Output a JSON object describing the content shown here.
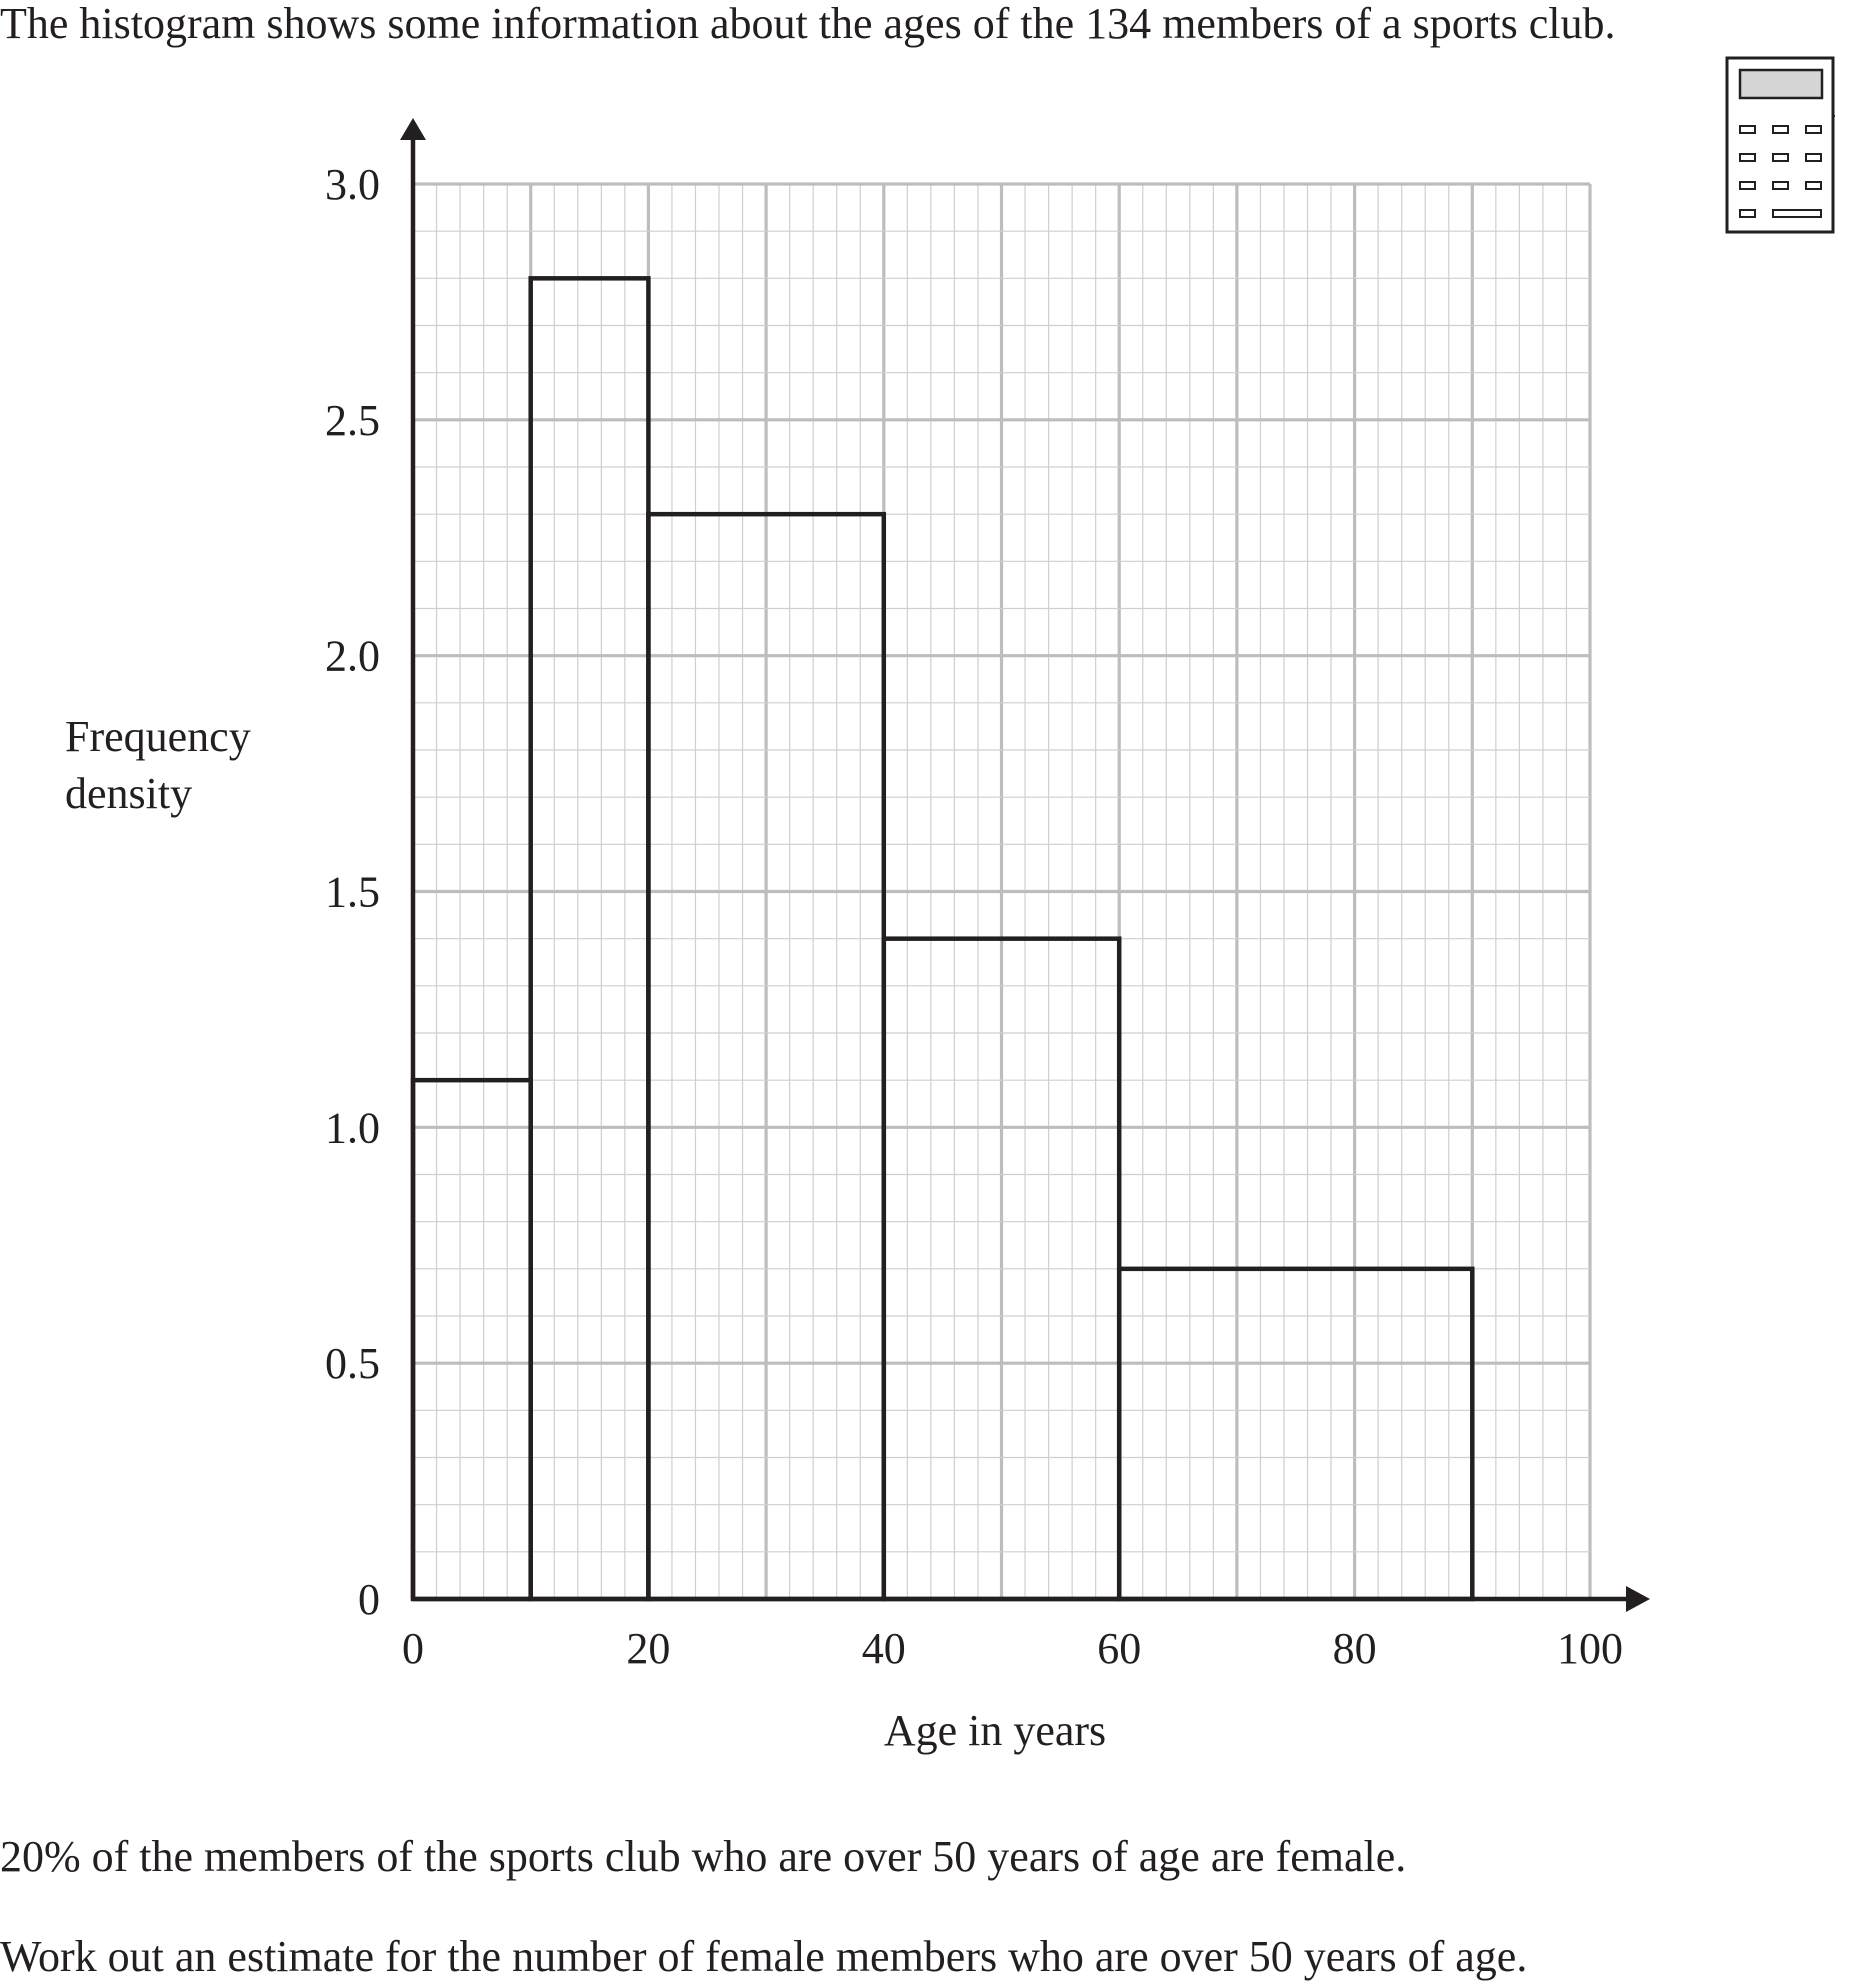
{
  "question": {
    "intro": "The histogram shows some information about the ages of the 134 members of a sports club.",
    "statement": "20% of the members of the sports club who are over 50 years of age are female.",
    "instruction": "Work out an estimate for the number of female members who are over 50 years of age."
  },
  "icons": {
    "calculator": "calculator-icon"
  },
  "colors": {
    "ink": "#231f20",
    "grid_major": "#bdbdbd",
    "grid_minor": "#cfcfcf"
  },
  "chart_data": {
    "type": "histogram",
    "title": "",
    "xlabel": "Age in years",
    "ylabel": [
      "Frequency",
      "density"
    ],
    "xlim": [
      0,
      100
    ],
    "ylim": [
      0,
      3.0
    ],
    "xticks": [
      0,
      20,
      40,
      60,
      80,
      100
    ],
    "xtick_labels": [
      "0",
      "20",
      "40",
      "60",
      "80",
      "100"
    ],
    "yticks": [
      0,
      0.5,
      1.0,
      1.5,
      2.0,
      2.5,
      3.0
    ],
    "ytick_labels": [
      "0",
      "0.5",
      "1.0",
      "1.5",
      "2.0",
      "2.5",
      "3.0"
    ],
    "grid": true,
    "bins": [
      {
        "x0": 0,
        "x1": 10,
        "density": 1.1
      },
      {
        "x0": 10,
        "x1": 20,
        "density": 2.8
      },
      {
        "x0": 20,
        "x1": 40,
        "density": 2.3
      },
      {
        "x0": 40,
        "x1": 60,
        "density": 1.4
      },
      {
        "x0": 60,
        "x1": 90,
        "density": 0.7
      }
    ]
  }
}
